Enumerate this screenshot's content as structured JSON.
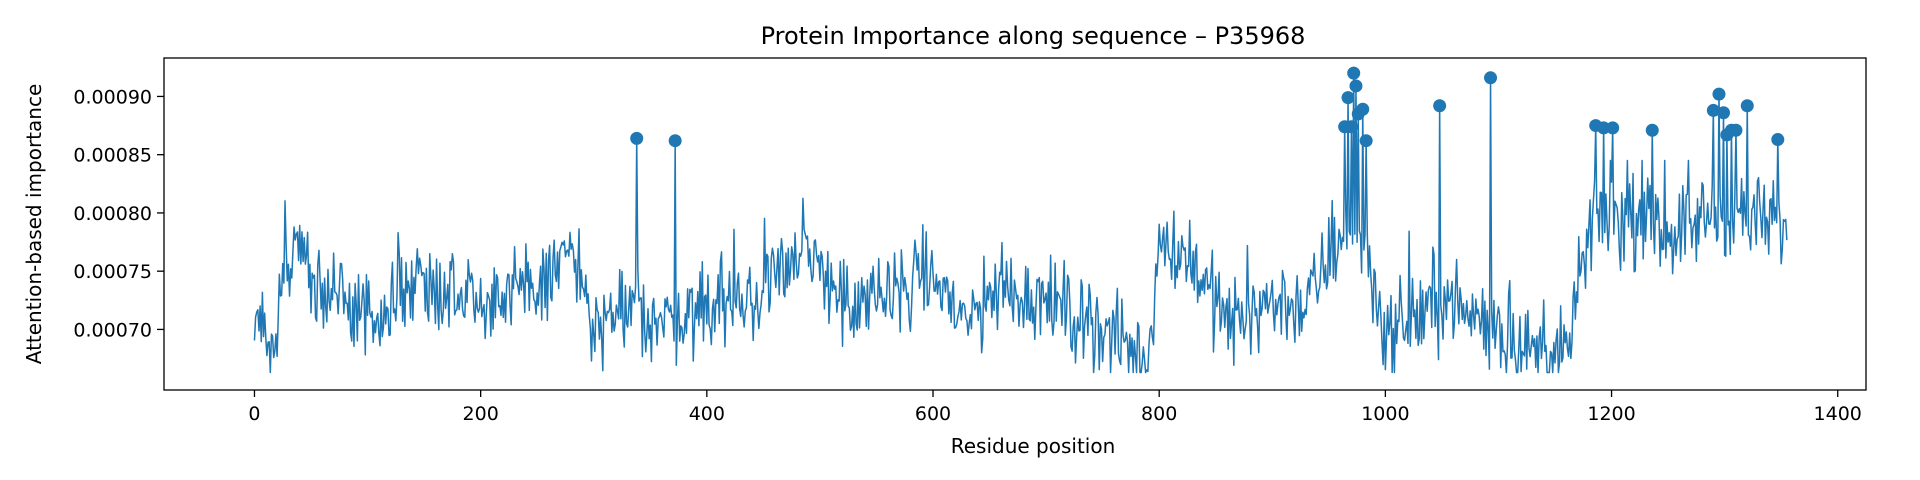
{
  "chart_data": {
    "type": "line",
    "title": "Protein Importance along sequence – P35968",
    "xlabel": "Residue position",
    "ylabel": "Attention-based importance",
    "xlim": [
      -80,
      1425
    ],
    "ylim": [
      0.000648,
      0.000933
    ],
    "x_ticks": [
      0,
      200,
      400,
      600,
      800,
      1000,
      1200,
      1400
    ],
    "x_tick_labels": [
      "0",
      "200",
      "400",
      "600",
      "800",
      "1000",
      "1200",
      "1400"
    ],
    "y_ticks": [
      0.0007,
      0.00075,
      0.0008,
      0.00085,
      0.0009
    ],
    "y_tick_labels": [
      "0.00070",
      "0.00075",
      "0.00080",
      "0.00085",
      "0.00090"
    ],
    "grid": false,
    "line_color": "#1f77b4",
    "residue_count": 1356,
    "series": [
      {
        "marker": "line",
        "profile": [
          {
            "x": 0,
            "y": 0.000703
          },
          {
            "x": 8,
            "y": 0.00069
          },
          {
            "x": 15,
            "y": 0.000676
          },
          {
            "x": 25,
            "y": 0.00074
          },
          {
            "x": 40,
            "y": 0.000775
          },
          {
            "x": 55,
            "y": 0.00073
          },
          {
            "x": 80,
            "y": 0.00072
          },
          {
            "x": 110,
            "y": 0.000705
          },
          {
            "x": 140,
            "y": 0.000745
          },
          {
            "x": 180,
            "y": 0.000735
          },
          {
            "x": 220,
            "y": 0.000725
          },
          {
            "x": 250,
            "y": 0.000735
          },
          {
            "x": 280,
            "y": 0.00077
          },
          {
            "x": 300,
            "y": 0.0007
          },
          {
            "x": 330,
            "y": 0.000715
          },
          {
            "x": 360,
            "y": 0.000705
          },
          {
            "x": 400,
            "y": 0.000725
          },
          {
            "x": 440,
            "y": 0.000715
          },
          {
            "x": 460,
            "y": 0.00076
          },
          {
            "x": 500,
            "y": 0.000755
          },
          {
            "x": 530,
            "y": 0.000715
          },
          {
            "x": 570,
            "y": 0.000735
          },
          {
            "x": 600,
            "y": 0.000745
          },
          {
            "x": 630,
            "y": 0.000705
          },
          {
            "x": 660,
            "y": 0.000735
          },
          {
            "x": 700,
            "y": 0.000725
          },
          {
            "x": 740,
            "y": 0.000705
          },
          {
            "x": 770,
            "y": 0.000685
          },
          {
            "x": 790,
            "y": 0.000672
          },
          {
            "x": 800,
            "y": 0.000775
          },
          {
            "x": 830,
            "y": 0.00076
          },
          {
            "x": 860,
            "y": 0.000705
          },
          {
            "x": 900,
            "y": 0.000725
          },
          {
            "x": 930,
            "y": 0.00072
          },
          {
            "x": 950,
            "y": 0.00076
          },
          {
            "x": 965,
            "y": 0.00079
          },
          {
            "x": 985,
            "y": 0.00076
          },
          {
            "x": 1000,
            "y": 0.000695
          },
          {
            "x": 1050,
            "y": 0.000725
          },
          {
            "x": 1100,
            "y": 0.0007
          },
          {
            "x": 1130,
            "y": 0.00068
          },
          {
            "x": 1160,
            "y": 0.000675
          },
          {
            "x": 1175,
            "y": 0.00076
          },
          {
            "x": 1190,
            "y": 0.0008
          },
          {
            "x": 1220,
            "y": 0.00079
          },
          {
            "x": 1260,
            "y": 0.000785
          },
          {
            "x": 1290,
            "y": 0.0008
          },
          {
            "x": 1320,
            "y": 0.000795
          },
          {
            "x": 1356,
            "y": 0.000785
          }
        ]
      },
      {
        "marker": "dot",
        "highlighted_points": [
          {
            "x": 338,
            "y": 0.000864
          },
          {
            "x": 372,
            "y": 0.000862
          },
          {
            "x": 964,
            "y": 0.000874
          },
          {
            "x": 967,
            "y": 0.000899
          },
          {
            "x": 970,
            "y": 0.000874
          },
          {
            "x": 972,
            "y": 0.00092
          },
          {
            "x": 974,
            "y": 0.000909
          },
          {
            "x": 976,
            "y": 0.000885
          },
          {
            "x": 980,
            "y": 0.000889
          },
          {
            "x": 983,
            "y": 0.000862
          },
          {
            "x": 1048,
            "y": 0.000892
          },
          {
            "x": 1093,
            "y": 0.000916
          },
          {
            "x": 1186,
            "y": 0.000875
          },
          {
            "x": 1193,
            "y": 0.000873
          },
          {
            "x": 1201,
            "y": 0.000873
          },
          {
            "x": 1236,
            "y": 0.000871
          },
          {
            "x": 1290,
            "y": 0.000888
          },
          {
            "x": 1295,
            "y": 0.000902
          },
          {
            "x": 1299,
            "y": 0.000886
          },
          {
            "x": 1302,
            "y": 0.000867
          },
          {
            "x": 1306,
            "y": 0.000871
          },
          {
            "x": 1310,
            "y": 0.000871
          },
          {
            "x": 1320,
            "y": 0.000892
          },
          {
            "x": 1347,
            "y": 0.000863
          }
        ]
      }
    ]
  }
}
